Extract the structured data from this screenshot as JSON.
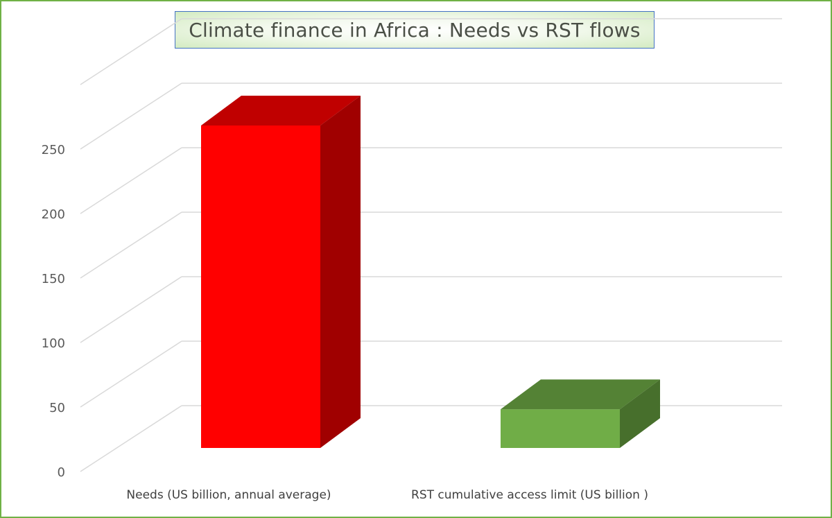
{
  "chart_data": {
    "type": "bar",
    "title": "Climate finance in Africa : Needs vs RST flows",
    "categories": [
      "Needs (US billion, annual average)",
      "RST cumulative access limit (US billion )"
    ],
    "values": [
      250,
      30
    ],
    "ylim": [
      0,
      300
    ],
    "yticks": [
      0,
      50,
      100,
      150,
      200,
      250
    ],
    "ytick_labels": [
      "0",
      "50",
      "100",
      "150",
      "200",
      "250"
    ],
    "grid": true,
    "legend": "none",
    "colors": {
      "bars": [
        "#ff0000",
        "#70ad47"
      ],
      "bar_tops": [
        "#c00000",
        "#548235"
      ],
      "bar_sides": [
        "#a00000",
        "#476f2c"
      ],
      "grid": "#d9d9d9",
      "frame": "#6fb146",
      "title_border": "#4472c4"
    }
  }
}
